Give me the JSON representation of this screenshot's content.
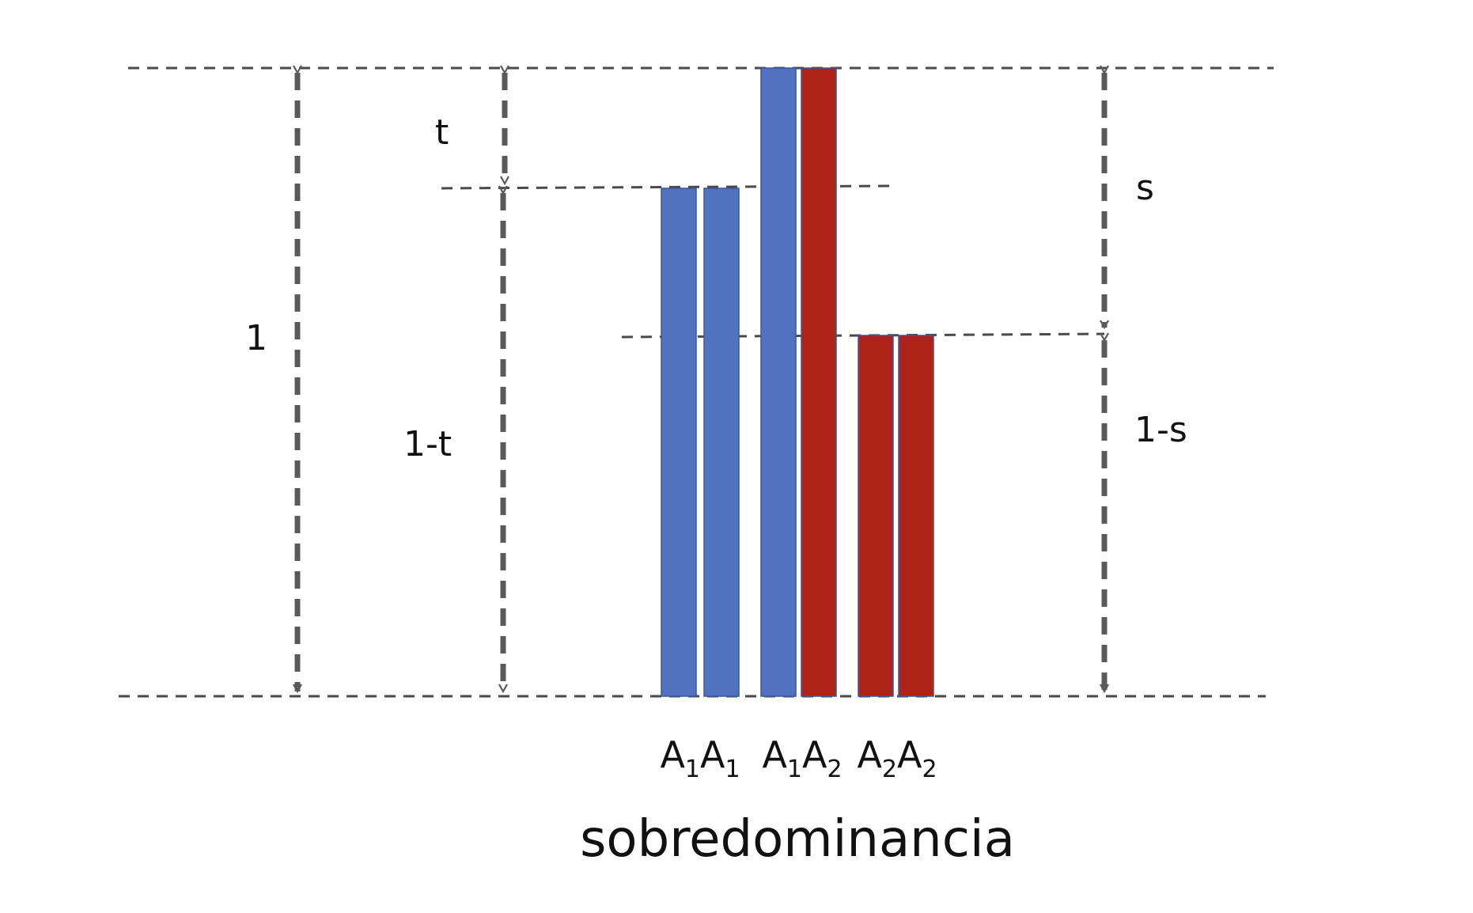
{
  "title": "sobredominancia",
  "colors": {
    "allele_1": "#5272c0",
    "allele_2": "#ae2318",
    "guide": "#4a4a4a",
    "arrow": "#5a5a5a"
  },
  "fitness_levels": {
    "full": {
      "value": 1,
      "label": "1"
    },
    "a1a1_loss": {
      "label": "t"
    },
    "a1a1": {
      "label": "1-t"
    },
    "a2a2_loss": {
      "label": "s"
    },
    "a2a2": {
      "label": "1-s"
    }
  },
  "genotypes": [
    {
      "id": "A1A1",
      "allele_a": {
        "letter": "A",
        "index": "1"
      },
      "allele_b": {
        "letter": "A",
        "index": "1"
      },
      "fitness": "1-t"
    },
    {
      "id": "A1A2",
      "allele_a": {
        "letter": "A",
        "index": "1"
      },
      "allele_b": {
        "letter": "A",
        "index": "2"
      },
      "fitness": "1"
    },
    {
      "id": "A2A2",
      "allele_a": {
        "letter": "A",
        "index": "2"
      },
      "allele_b": {
        "letter": "A",
        "index": "2"
      },
      "fitness": "1-s"
    }
  ]
}
